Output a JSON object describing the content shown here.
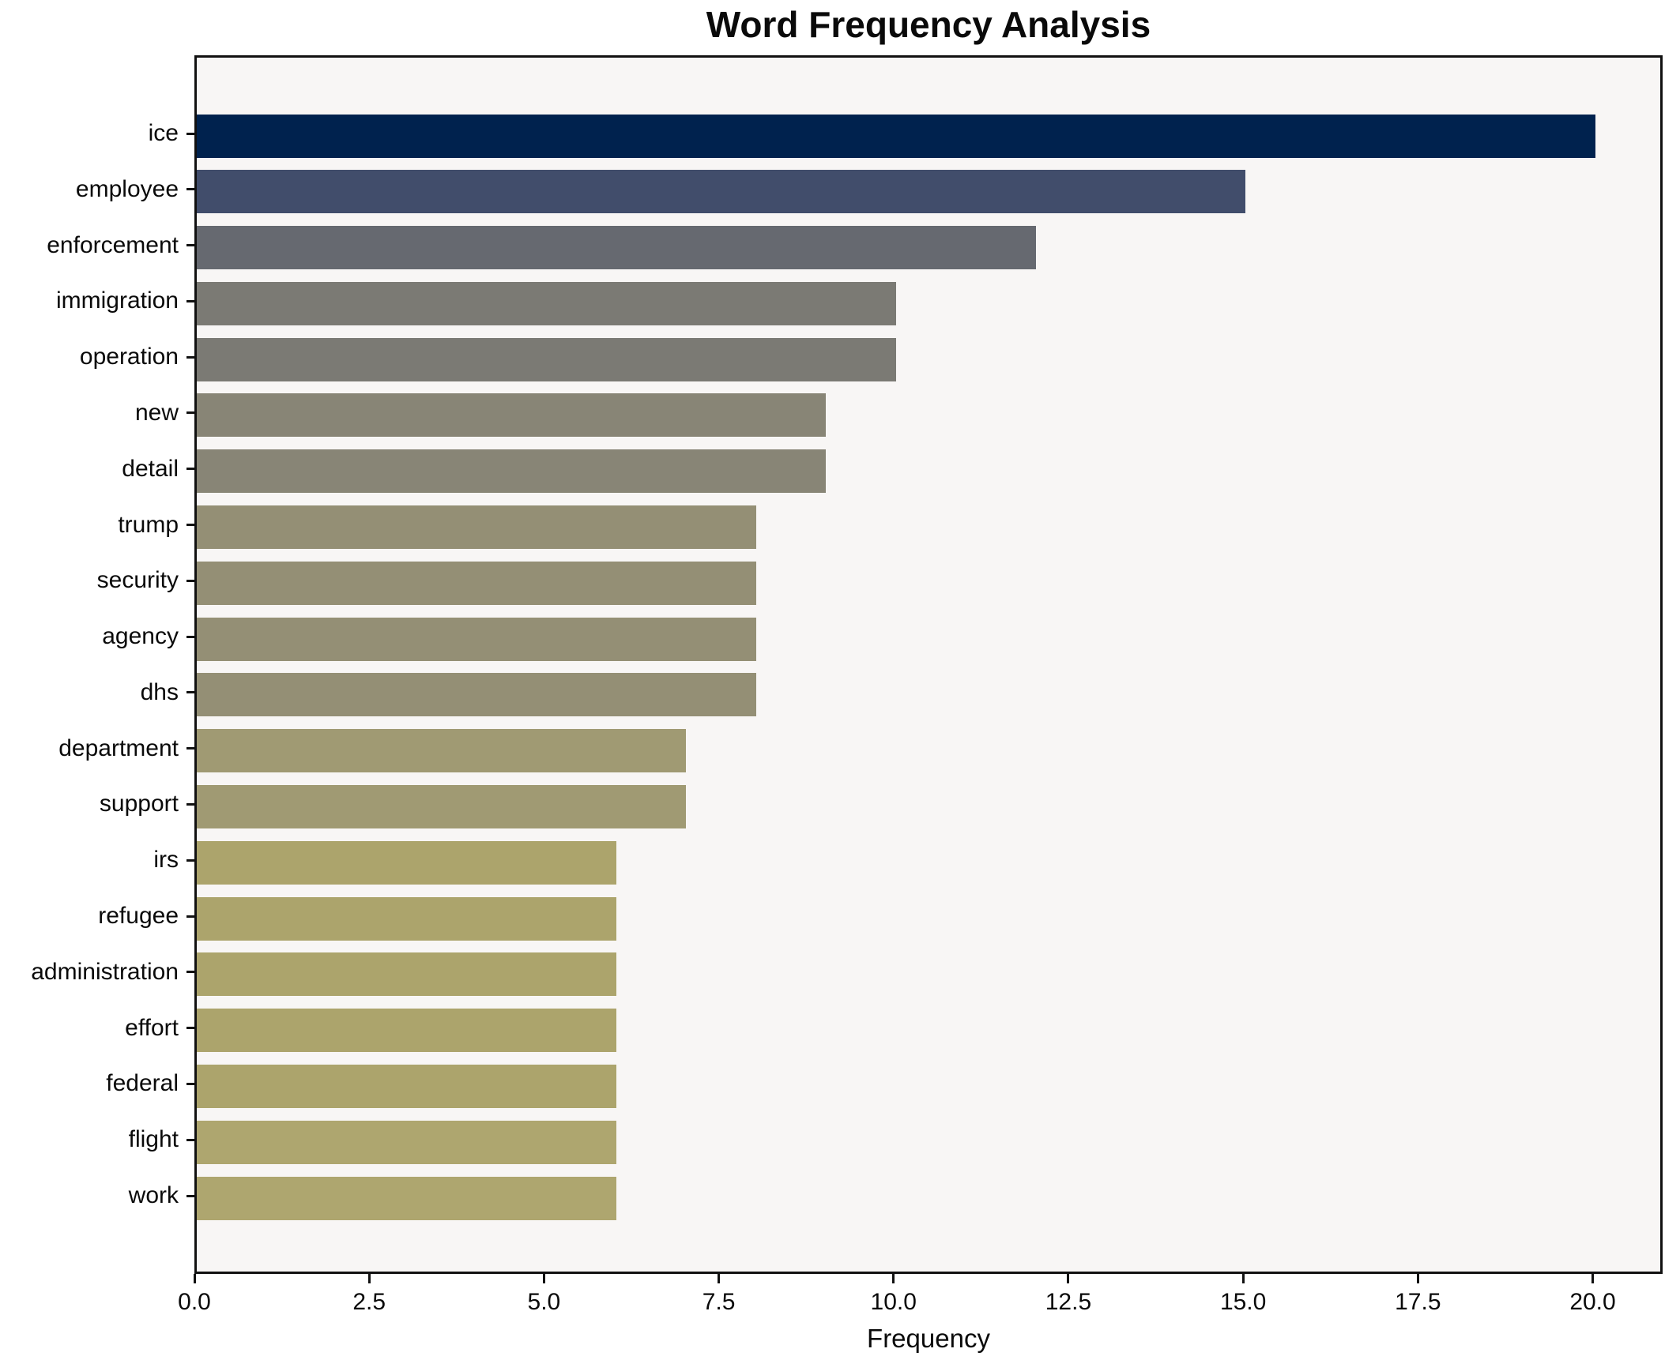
{
  "page": {
    "title": "Word Frequency Analysis"
  },
  "chart_data": {
    "type": "bar",
    "orientation": "horizontal",
    "title": "Word Frequency Analysis",
    "xlabel": "Frequency",
    "ylabel": "",
    "categories": [
      "ice",
      "employee",
      "enforcement",
      "immigration",
      "operation",
      "new",
      "detail",
      "trump",
      "security",
      "agency",
      "dhs",
      "department",
      "support",
      "irs",
      "refugee",
      "administration",
      "effort",
      "federal",
      "flight",
      "work"
    ],
    "values": [
      20,
      15,
      12,
      10,
      10,
      9,
      9,
      8,
      8,
      8,
      8,
      7,
      7,
      6,
      6,
      6,
      6,
      6,
      6,
      6
    ],
    "bar_colors": [
      "#00224e",
      "#414d6b",
      "#666970",
      "#7b7a74",
      "#7b7a74",
      "#888576",
      "#888576",
      "#948f75",
      "#948f75",
      "#948f75",
      "#948f75",
      "#a09a73",
      "#a09a73",
      "#aca46c",
      "#aca46c",
      "#aca46c",
      "#aca46c",
      "#aca46c",
      "#aea66f",
      "#aea66f"
    ],
    "xlim": [
      0,
      21
    ],
    "xticks": {
      "values": [
        0,
        2.5,
        5,
        7.5,
        10,
        12.5,
        15,
        17.5,
        20
      ],
      "labels": [
        "0.0",
        "2.5",
        "5.0",
        "7.5",
        "10.0",
        "12.5",
        "15.0",
        "17.5",
        "20.0"
      ]
    },
    "grid": false,
    "legend": null,
    "plot_background": "#f8f6f5"
  },
  "colors": {
    "page_background": "#ffffff",
    "plot_background": "#f8f6f5",
    "spine": "#111111",
    "text": "#0a0a0a",
    "max_bar": "#00224e",
    "min_bar": "#aea66f"
  }
}
